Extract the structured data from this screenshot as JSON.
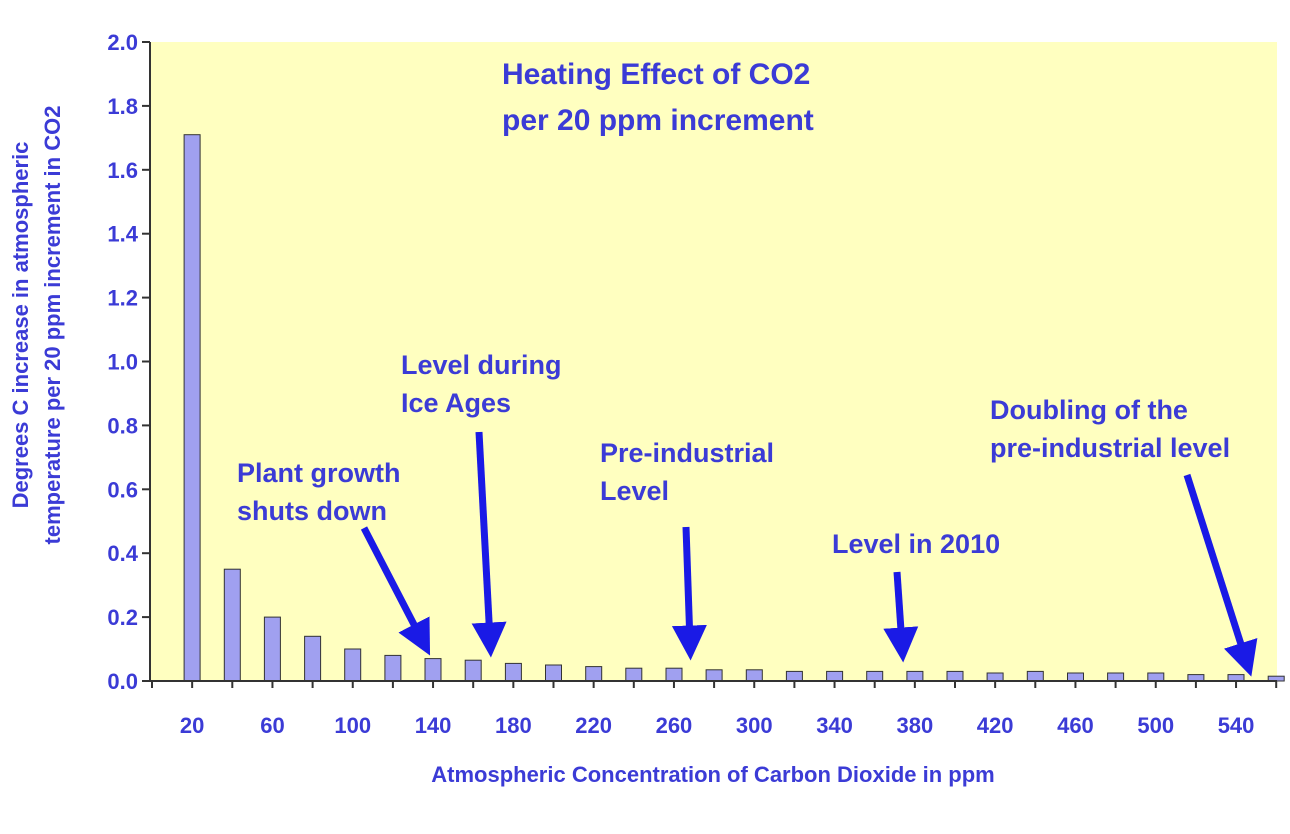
{
  "chart_data": {
    "type": "bar",
    "title": [
      "Heating Effect of CO2",
      "per 20 ppm increment"
    ],
    "xlabel": "Atmospheric Concentration of Carbon Dioxide in ppm",
    "ylabel": [
      "Degrees C increase in atmospheric",
      "temperature per 20 ppm increment in CO2"
    ],
    "ylim": [
      0,
      2.0
    ],
    "yticks": [
      "0.0",
      "0.2",
      "0.4",
      "0.6",
      "0.8",
      "1.0",
      "1.2",
      "1.4",
      "1.6",
      "1.8",
      "2.0"
    ],
    "categories": [
      20,
      40,
      60,
      80,
      100,
      120,
      140,
      160,
      180,
      200,
      220,
      240,
      260,
      280,
      300,
      320,
      340,
      360,
      380,
      400,
      420,
      440,
      460,
      480,
      500,
      520,
      540,
      560
    ],
    "xtick_labels": [
      "20",
      "60",
      "100",
      "140",
      "180",
      "220",
      "260",
      "300",
      "340",
      "380",
      "420",
      "460",
      "500",
      "540"
    ],
    "values": [
      1.71,
      0.35,
      0.2,
      0.14,
      0.1,
      0.08,
      0.07,
      0.065,
      0.055,
      0.05,
      0.045,
      0.04,
      0.04,
      0.035,
      0.035,
      0.03,
      0.03,
      0.03,
      0.03,
      0.03,
      0.025,
      0.03,
      0.025,
      0.025,
      0.025,
      0.02,
      0.02,
      0.015
    ],
    "bar_color": "#a0a0f0",
    "plot_background": "#ffffc0",
    "text_color": "#3b3bd6",
    "arrow_color": "#1a1ae6",
    "grid": false,
    "legend": "none",
    "annotations": [
      {
        "lines": [
          "Plant growth",
          "shuts down"
        ],
        "target_x": 140
      },
      {
        "lines": [
          "Level during",
          "Ice Ages"
        ],
        "target_x": 180
      },
      {
        "lines": [
          "Pre-industrial",
          "Level"
        ],
        "target_x": 280
      },
      {
        "lines": [
          "Level  in 2010"
        ],
        "target_x": 390
      },
      {
        "lines": [
          "Doubling of the",
          "pre-industrial level"
        ],
        "target_x": 560
      }
    ]
  }
}
